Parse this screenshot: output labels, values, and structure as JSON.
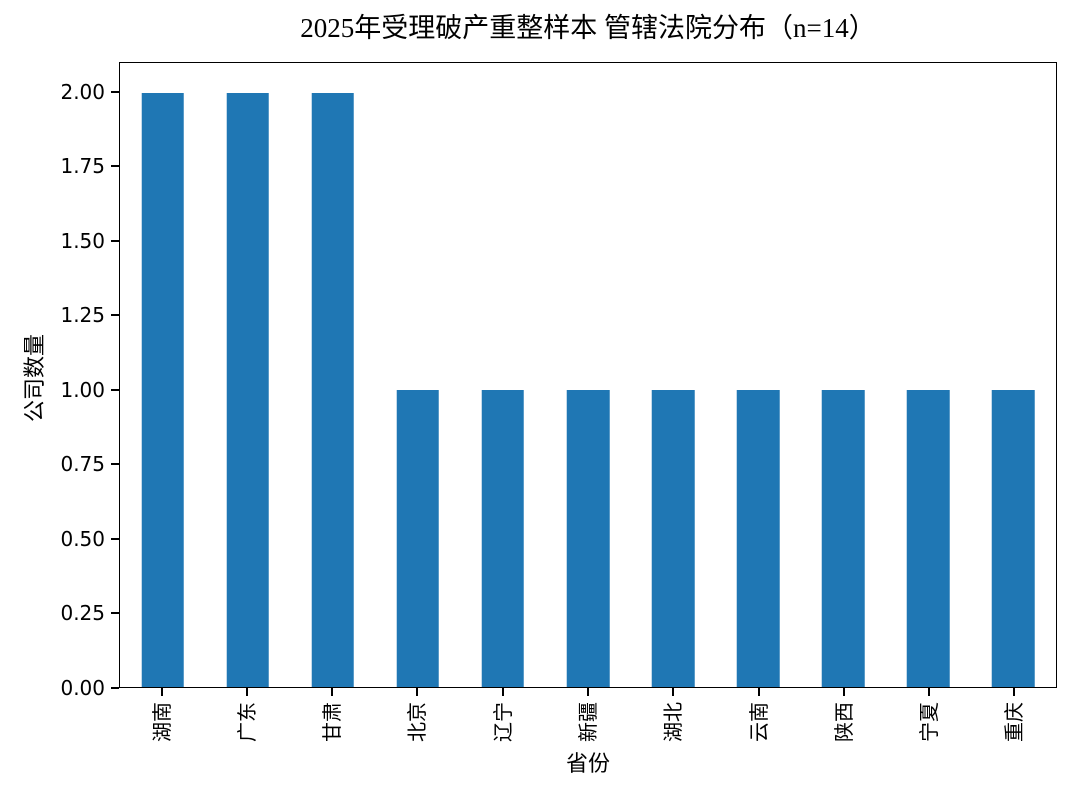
{
  "figure": {
    "background": "#ffffff",
    "text_color": "#000000"
  },
  "chart_data": {
    "type": "bar",
    "title": "2025年受理破产重整样本 管辖法院分布（n=14）",
    "xlabel": "省份",
    "ylabel": "公司数量",
    "categories": [
      "湖南",
      "广东",
      "甘肃",
      "北京",
      "辽宁",
      "新疆",
      "湖北",
      "云南",
      "陕西",
      "宁夏",
      "重庆"
    ],
    "values": [
      2,
      2,
      2,
      1,
      1,
      1,
      1,
      1,
      1,
      1,
      1
    ],
    "n_total_shown_in_title": 14,
    "yticks": [
      "0.00",
      "0.25",
      "0.50",
      "0.75",
      "1.00",
      "1.25",
      "1.50",
      "1.75",
      "2.00"
    ],
    "ylim": [
      0,
      2.1
    ],
    "x_tick_rotation": 90,
    "bar_color": "#1f77b4",
    "bar_width_ratio": 0.5,
    "grid": false,
    "legend": null
  }
}
